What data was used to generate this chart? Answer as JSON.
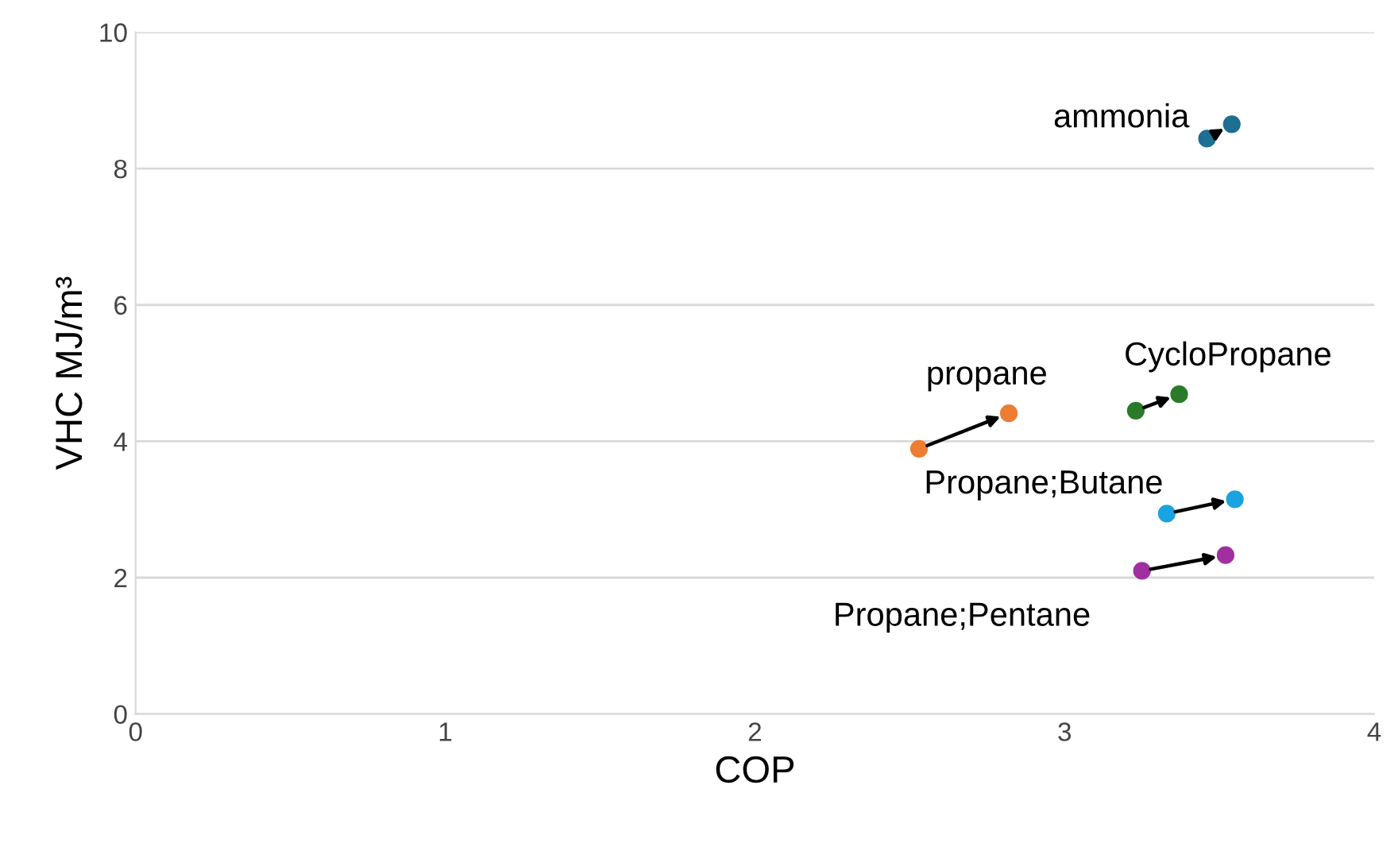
{
  "chart_data": {
    "type": "scatter",
    "xlabel": "COP",
    "ylabel": "VHC MJ/m³",
    "xlim": [
      0,
      4
    ],
    "xticks": [
      0,
      1,
      2,
      3,
      4
    ],
    "ylim": [
      0,
      10
    ],
    "yticks": [
      0,
      2,
      4,
      6,
      8,
      10
    ],
    "grid": "y",
    "marker": "circle",
    "legend": false,
    "series": [
      {
        "name": "ammonia",
        "color": "#1f6e94",
        "x": [
          3.46,
          3.54
        ],
        "values": [
          8.44,
          8.65
        ]
      },
      {
        "name": "propane",
        "color": "#ed7d31",
        "x": [
          2.53,
          2.82
        ],
        "values": [
          3.89,
          4.41
        ]
      },
      {
        "name": "CycloPropane",
        "color": "#2a7a2a",
        "x": [
          3.23,
          3.37
        ],
        "values": [
          4.45,
          4.69
        ]
      },
      {
        "name": "Propane;Butane",
        "color": "#1aa3e0",
        "x": [
          3.33,
          3.55
        ],
        "values": [
          2.94,
          3.15
        ]
      },
      {
        "name": "Propane;Pentane",
        "color": "#a030a0",
        "x": [
          3.25,
          3.52
        ],
        "values": [
          2.1,
          2.33
        ]
      }
    ]
  }
}
